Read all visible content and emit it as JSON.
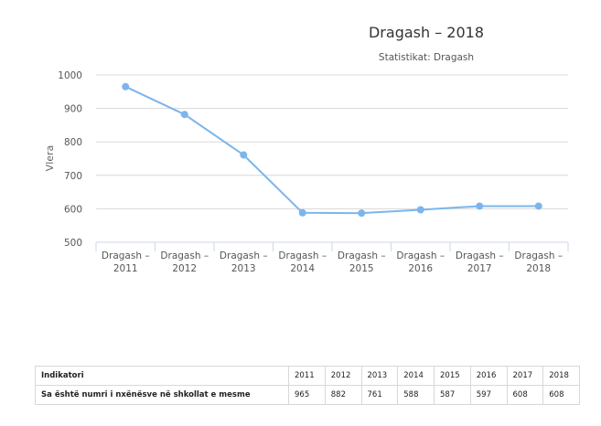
{
  "chart_data": {
    "type": "line",
    "title": "Dragash – 2018",
    "subtitle": "Statistikat: Dragash",
    "ylabel": "Vlera",
    "xlabel": "",
    "categories": [
      [
        "Dragash –",
        "2011"
      ],
      [
        "Dragash –",
        "2012"
      ],
      [
        "Dragash –",
        "2013"
      ],
      [
        "Dragash –",
        "2014"
      ],
      [
        "Dragash –",
        "2015"
      ],
      [
        "Dragash –",
        "2016"
      ],
      [
        "Dragash –",
        "2017"
      ],
      [
        "Dragash –",
        "2018"
      ]
    ],
    "series": [
      {
        "values": [
          965,
          882,
          761,
          588,
          587,
          597,
          608,
          608
        ]
      }
    ],
    "ylim": [
      500,
      1000
    ],
    "yticks": [
      500,
      600,
      700,
      800,
      900,
      1000
    ],
    "grid": true,
    "colors": {
      "line": "#7cb5ec",
      "grid": "#d8d8d8",
      "axis": "#ccd6eb"
    }
  },
  "table": {
    "header_label": "Indikatori",
    "years": [
      "2011",
      "2012",
      "2013",
      "2014",
      "2015",
      "2016",
      "2017",
      "2018"
    ],
    "row_label": "Sa është numri i nxënësve në shkollat e mesme",
    "values": [
      "965",
      "882",
      "761",
      "588",
      "587",
      "597",
      "608",
      "608"
    ]
  }
}
